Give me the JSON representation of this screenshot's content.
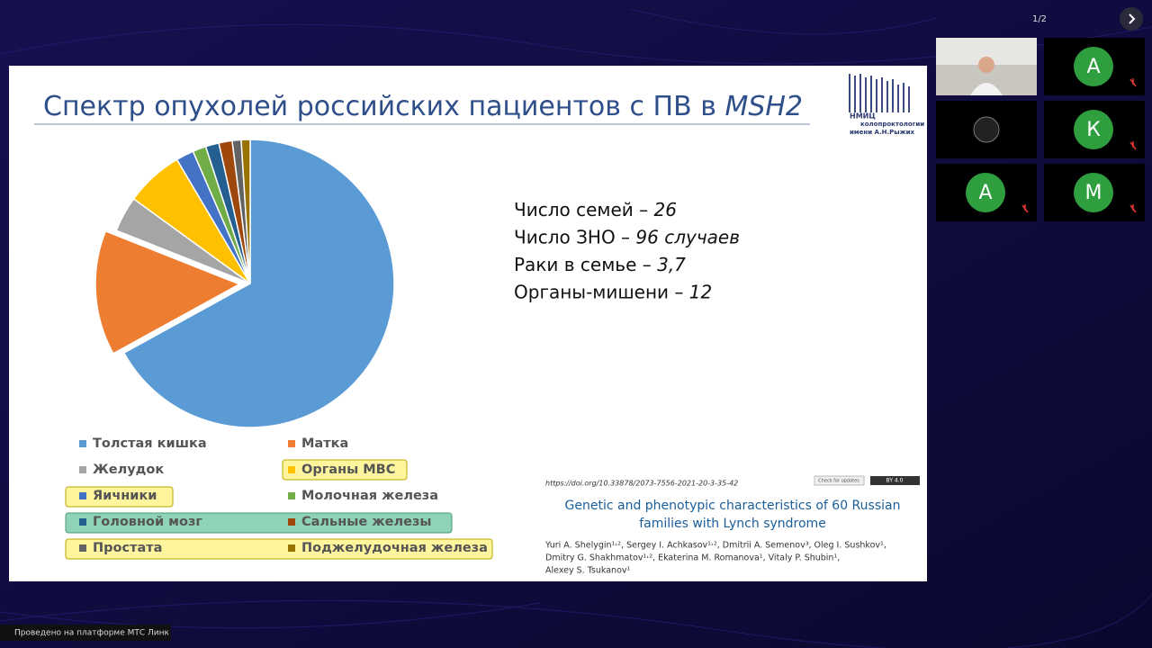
{
  "page_counter": "1/2",
  "slide": {
    "title": "Спектр опухолей российских пациентов с ПВ в",
    "title_italic": "MSH2",
    "logo": [
      "НМИЦ",
      "колопроктологии",
      "имени А.Н.Рыжих"
    ],
    "stats": [
      {
        "label": "Число семей –",
        "value": "26"
      },
      {
        "label": "Число ЗНО –",
        "value": "96 случаев"
      },
      {
        "label": "Раки в семье –",
        "value": "3,7"
      },
      {
        "label": "Органы-мишени –",
        "value": "12"
      }
    ],
    "citation": {
      "doi": "https://doi.org/10.33878/2073-7556-2021-20-3-35-42",
      "badges": [
        "Check for updates",
        "BY 4.0"
      ],
      "title": [
        "Genetic and phenotypic characteristics of 60 Russian",
        "families with Lynch syndrome"
      ],
      "authors": [
        "Yuri A. Shelygin¹˒², Sergey I. Achkasov¹˒², Dmitrii A. Semenov³, Oleg I. Sushkov¹,",
        "Dmitry G. Shakhmatov¹˒², Ekaterina M. Romanova¹, Vitaly P. Shubin¹,",
        "Alexey S. Tsukanov¹"
      ]
    }
  },
  "chart_data": {
    "type": "pie",
    "categories": [
      "Толстая кишка",
      "Матка",
      "Желудок",
      "Органы МВС",
      "Яичники",
      "Молочная железа",
      "Головной мозг",
      "Сальные железы",
      "Простата",
      "Поджелудочная железа"
    ],
    "values": [
      67,
      14,
      4,
      6.5,
      2,
      1.5,
      1.5,
      1.5,
      1,
      1
    ],
    "colors": [
      "#5b9bd5",
      "#ed7d31",
      "#a5a5a5",
      "#ffc000",
      "#4472c4",
      "#70ad47",
      "#255e91",
      "#9e480e",
      "#636363",
      "#997300"
    ]
  },
  "participants": [
    "А",
    "К",
    "А",
    "М"
  ],
  "footer": "Проведено на платформе МТС Линк"
}
